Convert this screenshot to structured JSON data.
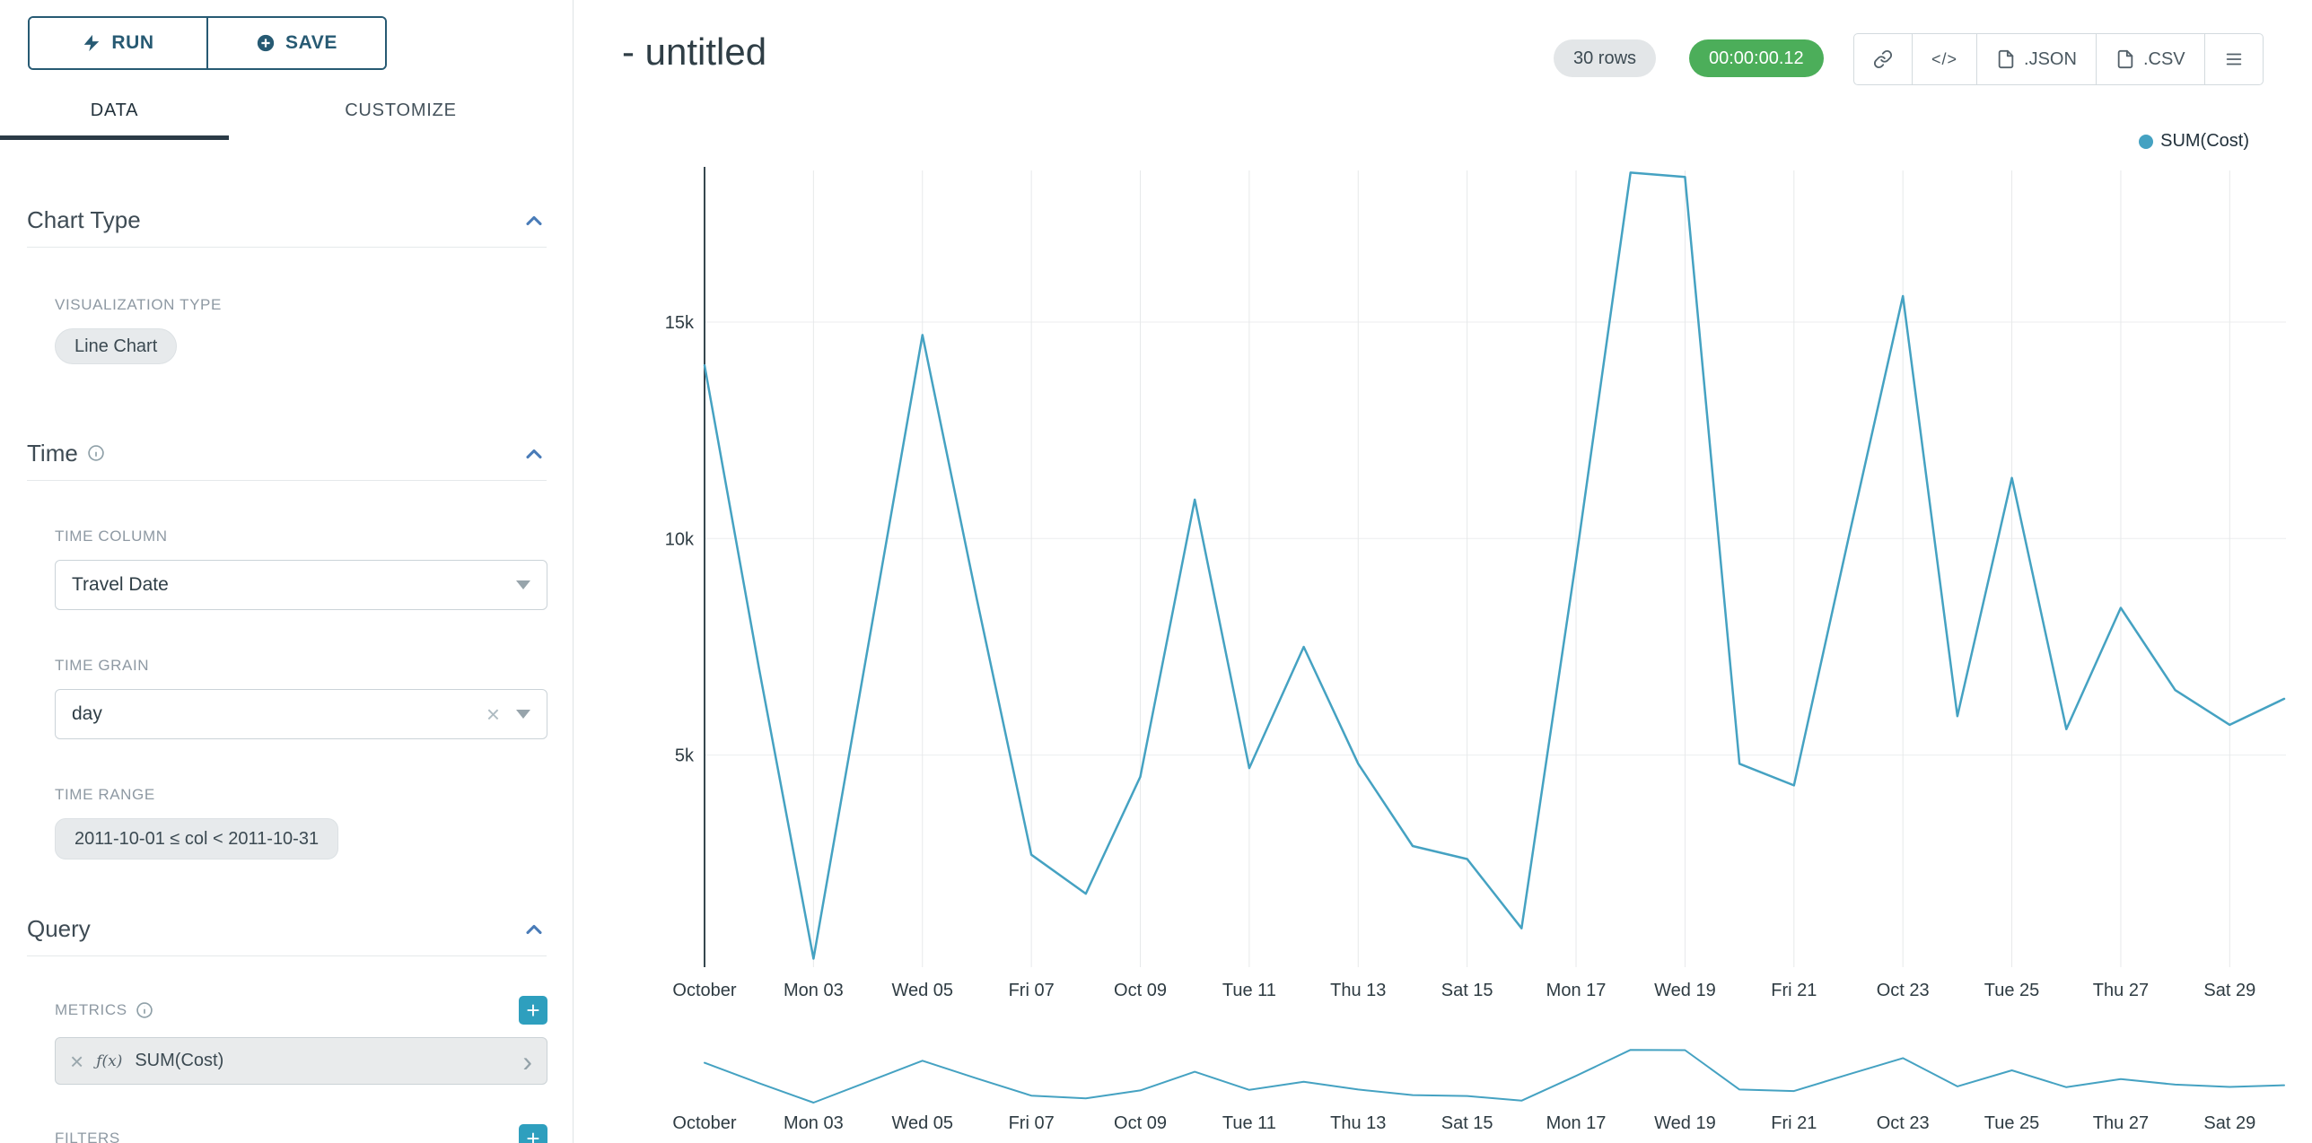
{
  "icons": {
    "clear": "×",
    "plus": "+",
    "caret_right": "›",
    "code": "</>"
  },
  "colors": {
    "accent_teal": "#45A2C2",
    "navy": "#275A73",
    "success_green": "#4CAE5A",
    "chevron_blue": "#4A7CB8",
    "plus_teal": "#2E9FBE"
  },
  "sidebar": {
    "run_button": {
      "label": "RUN"
    },
    "save_button": {
      "label": "SAVE"
    },
    "tabs": [
      {
        "label": "DATA",
        "active": true
      },
      {
        "label": "CUSTOMIZE",
        "active": false
      }
    ],
    "sections": {
      "chart_type": {
        "title": "Chart Type",
        "visualization_type_label": "VISUALIZATION TYPE",
        "visualization_type_value": "Line Chart"
      },
      "time": {
        "title": "Time",
        "time_column_label": "TIME COLUMN",
        "time_column_value": "Travel Date",
        "time_grain_label": "TIME GRAIN",
        "time_grain_value": "day",
        "time_range_label": "TIME RANGE",
        "time_range_value": "2011-10-01 ≤ col < 2011-10-31"
      },
      "query": {
        "title": "Query",
        "metrics_label": "METRICS",
        "metric_prefix": "ƒ(x)",
        "metric_value": "SUM(Cost)",
        "filters_label": "FILTERS"
      }
    }
  },
  "header": {
    "title": "- untitled",
    "rows_badge": "30 rows",
    "timer_badge": "00:00:00.12",
    "export_json_label": ".JSON",
    "export_csv_label": ".CSV"
  },
  "legend": {
    "items": [
      {
        "label": "SUM(Cost)",
        "color": "#45A2C2"
      }
    ]
  },
  "chart_data": {
    "type": "line",
    "title": "",
    "xlabel": "",
    "ylabel": "",
    "x": [
      "2011-10-01",
      "2011-10-02",
      "2011-10-03",
      "2011-10-04",
      "2011-10-05",
      "2011-10-06",
      "2011-10-07",
      "2011-10-08",
      "2011-10-09",
      "2011-10-10",
      "2011-10-11",
      "2011-10-12",
      "2011-10-13",
      "2011-10-14",
      "2011-10-15",
      "2011-10-16",
      "2011-10-17",
      "2011-10-18",
      "2011-10-19",
      "2011-10-20",
      "2011-10-21",
      "2011-10-22",
      "2011-10-23",
      "2011-10-24",
      "2011-10-25",
      "2011-10-26",
      "2011-10-27",
      "2011-10-28",
      "2011-10-29",
      "2011-10-30"
    ],
    "series": [
      {
        "name": "SUM(Cost)",
        "values": [
          14000,
          7000,
          300,
          7500,
          14700,
          8600,
          2700,
          1800,
          4500,
          10900,
          4700,
          7500,
          4800,
          2900,
          2600,
          1000,
          9500,
          18450,
          18350,
          4800,
          4300,
          10000,
          15600,
          5900,
          11400,
          5600,
          8400,
          6500,
          5700,
          6300
        ]
      }
    ],
    "x_tick_labels": [
      "October",
      "Mon 03",
      "Wed 05",
      "Fri 07",
      "Oct 09",
      "Tue 11",
      "Thu 13",
      "Sat 15",
      "Mon 17",
      "Wed 19",
      "Fri 21",
      "Oct 23",
      "Tue 25",
      "Thu 27",
      "Sat 29"
    ],
    "y_ticks": [
      {
        "label": "5k",
        "value": 5000
      },
      {
        "label": "10k",
        "value": 10000
      },
      {
        "label": "15k",
        "value": 15000
      }
    ],
    "ylim": [
      0,
      18500
    ],
    "line_color": "#45A2C2",
    "grid": true,
    "legend_position": "top-right",
    "brush_chart": true
  }
}
